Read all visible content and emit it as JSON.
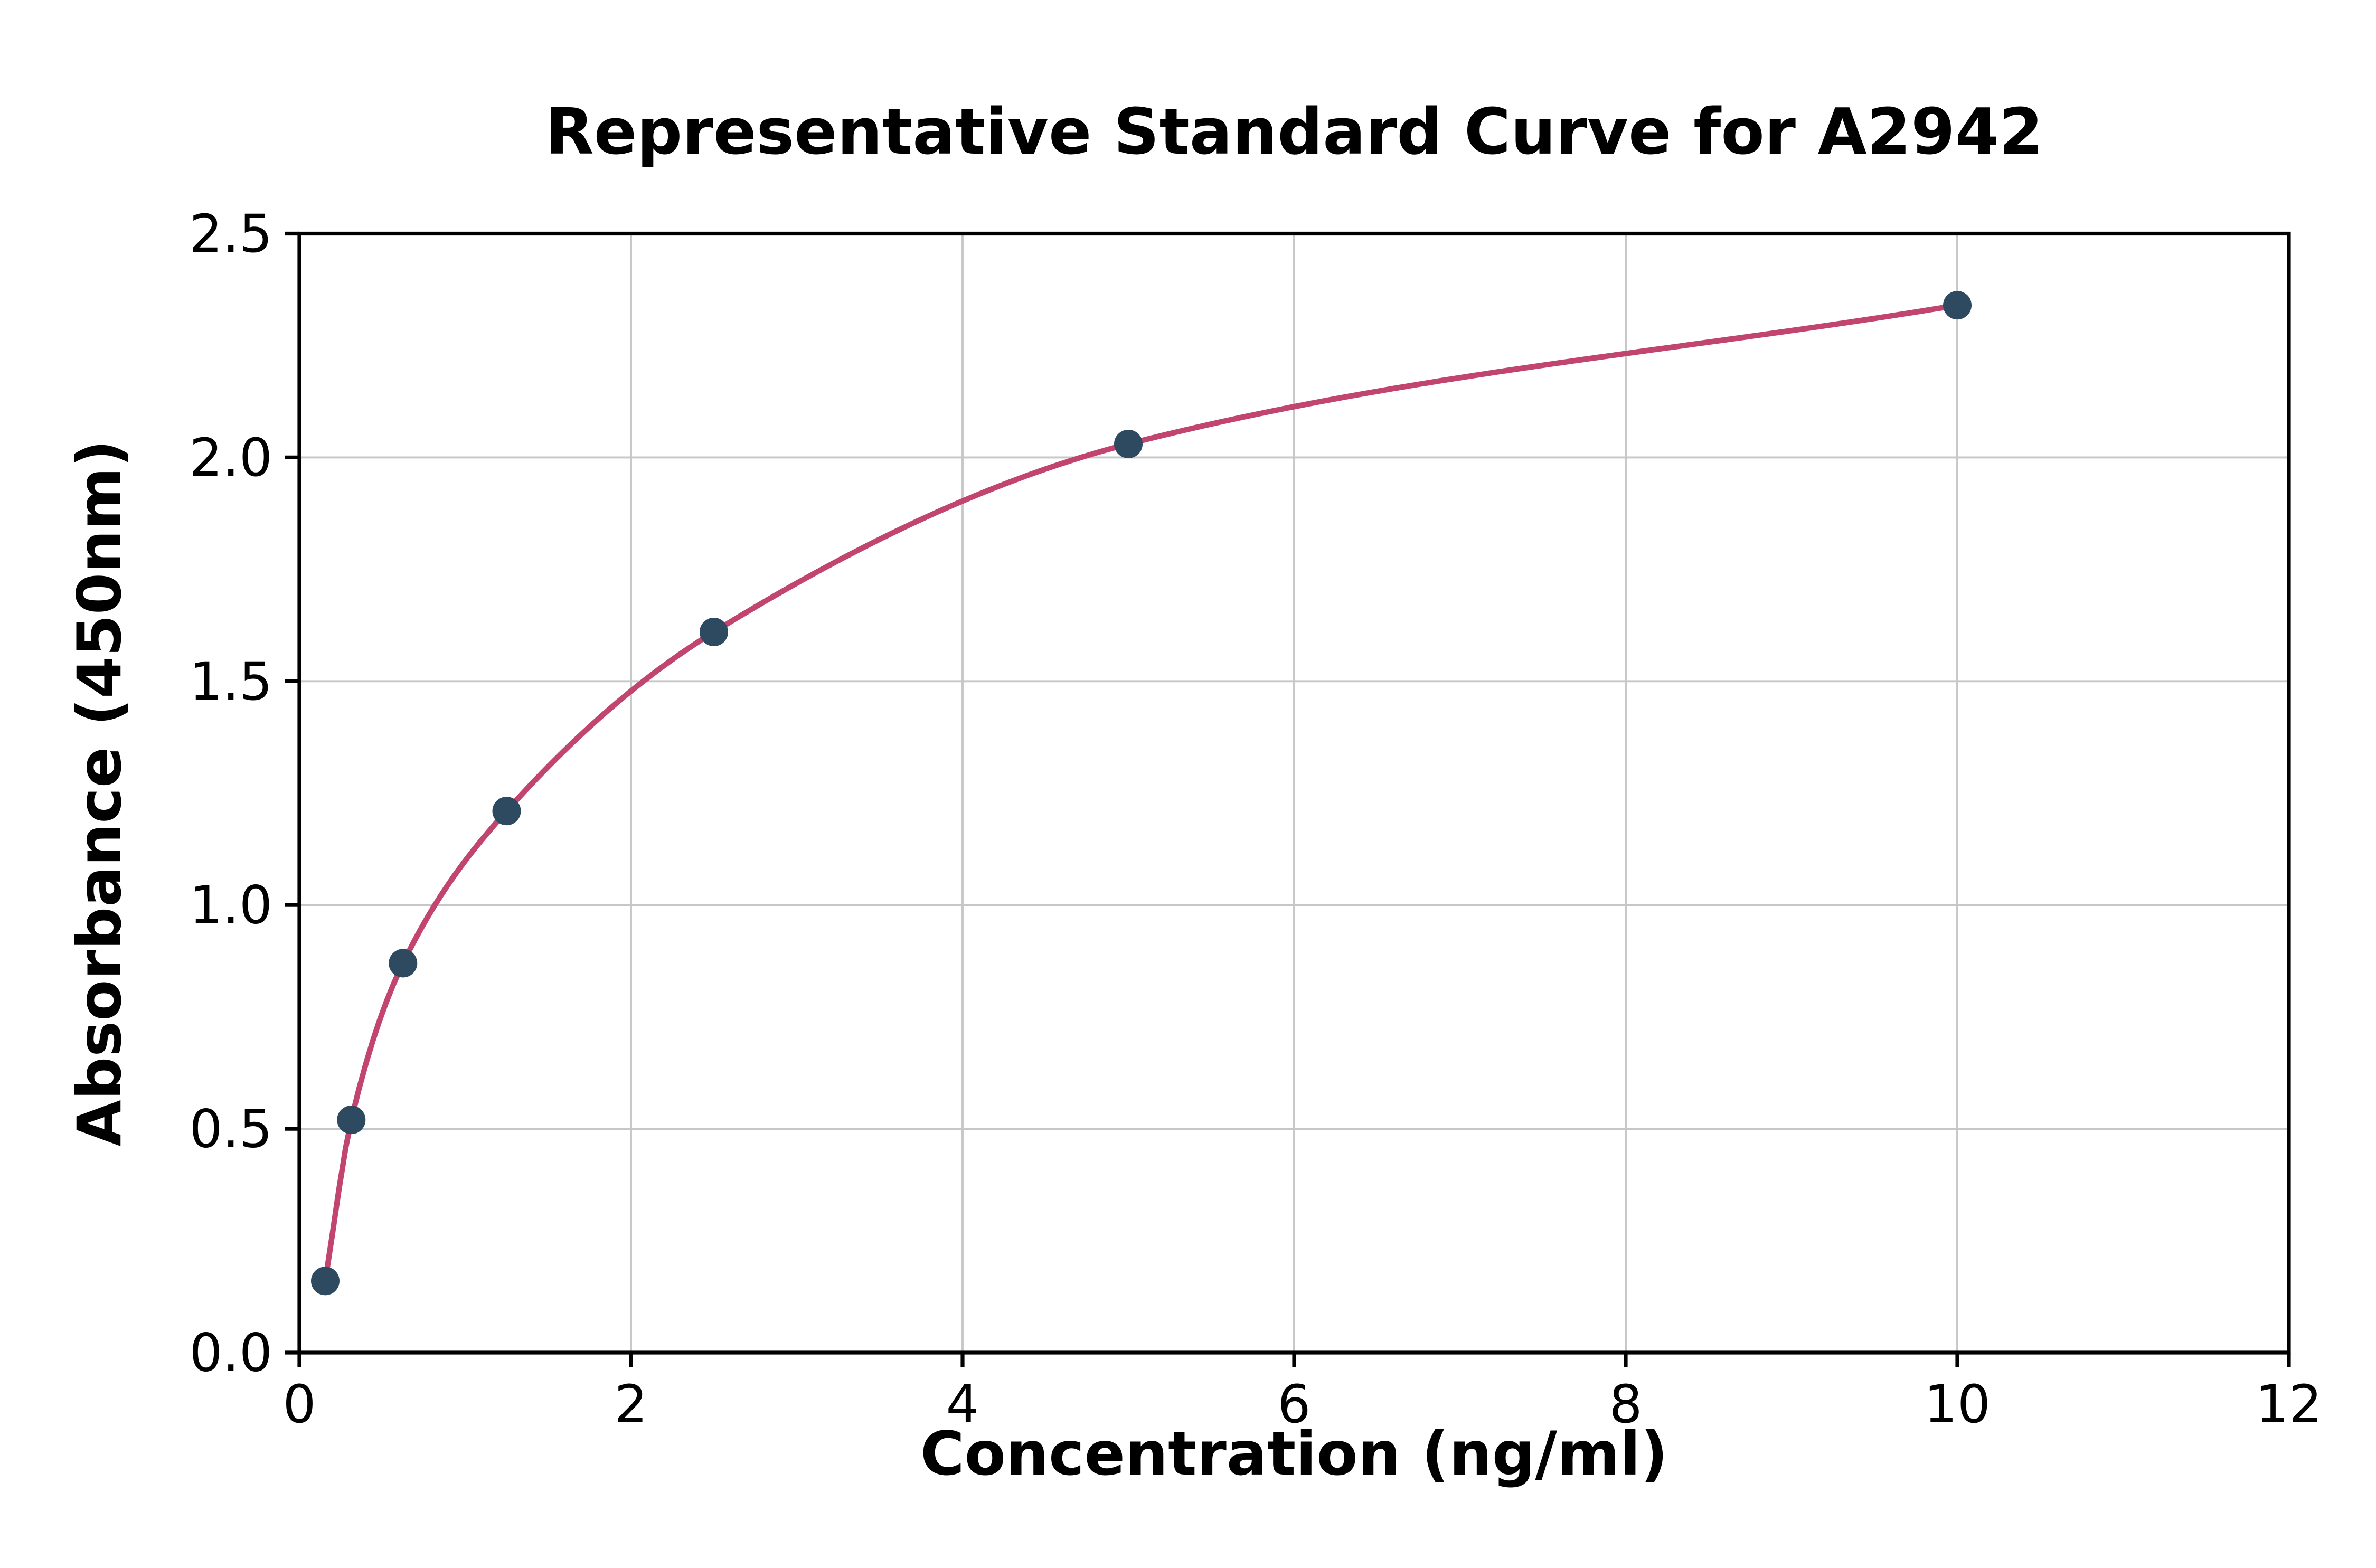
{
  "chart_data": {
    "type": "scatter",
    "title": "Representative Standard Curve for A2942",
    "xlabel": "Concentration (ng/ml)",
    "ylabel": "Absorbance (450nm)",
    "xlim": [
      0,
      12
    ],
    "ylim": [
      0,
      2.5
    ],
    "x_ticks": [
      0,
      2,
      4,
      6,
      8,
      10,
      12
    ],
    "x_tick_labels": [
      "0",
      "2",
      "4",
      "6",
      "8",
      "10",
      "12"
    ],
    "y_ticks": [
      0,
      0.5,
      1,
      1.5,
      2,
      2.5
    ],
    "y_tick_labels": [
      "0.0",
      "0.5",
      "1.0",
      "1.5",
      "2.0",
      "2.5"
    ],
    "grid": true,
    "legend": false,
    "series": [
      {
        "name": "standard-points",
        "type": "scatter",
        "marker": "circle",
        "color": "#2e4a60",
        "x": [
          0.156,
          0.313,
          0.625,
          1.25,
          2.5,
          5,
          10
        ],
        "y": [
          0.16,
          0.52,
          0.87,
          1.21,
          1.61,
          2.03,
          2.34
        ]
      },
      {
        "name": "fit-curve",
        "type": "line",
        "color": "#c2456f",
        "through": "standard-points"
      }
    ],
    "colors": {
      "grid": "#c7c7c7",
      "axes": "#000000",
      "background": "#ffffff"
    }
  }
}
